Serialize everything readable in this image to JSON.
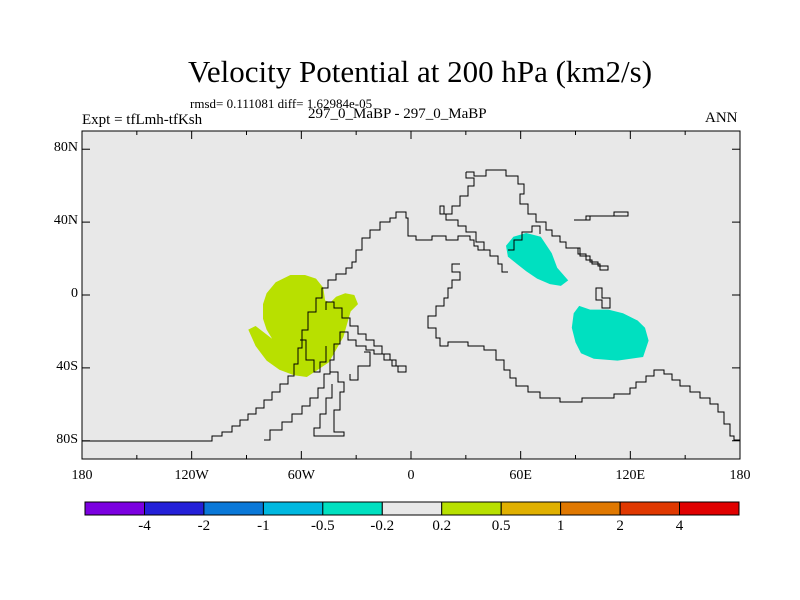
{
  "title": "Velocity Potential at 200 hPa (km2/s)",
  "stats": "rmsd= 0.111081 diff= 1.62984e-05",
  "experiment": "Expt = tfLmh-tfKsh",
  "case_label": "297_0_MaBP - 297_0_MaBP",
  "season": "ANN",
  "chart_data": {
    "type": "heatmap",
    "projection": "cylindrical-equidistant",
    "variable": "Velocity Potential at 200 hPa",
    "units": "km2/s",
    "xlim": [
      -180,
      180
    ],
    "ylim": [
      -90,
      90
    ],
    "lat_ticks": [
      {
        "value": 80,
        "label": "80N"
      },
      {
        "value": 40,
        "label": "40N"
      },
      {
        "value": 0,
        "label": "0"
      },
      {
        "value": -40,
        "label": "40S"
      },
      {
        "value": -80,
        "label": "80S"
      }
    ],
    "lon_ticks": [
      {
        "value": -180,
        "label": "180"
      },
      {
        "value": -120,
        "label": "120W"
      },
      {
        "value": -60,
        "label": "60W"
      },
      {
        "value": 0,
        "label": "0"
      },
      {
        "value": 60,
        "label": "60E"
      },
      {
        "value": 120,
        "label": "120E"
      },
      {
        "value": 180,
        "label": "180"
      }
    ],
    "colorbar": {
      "colors": [
        "#7b00e0",
        "#2420d8",
        "#0a78d8",
        "#00b8e0",
        "#00e0c0",
        "#e8e8e8",
        "#b8e000",
        "#e0b000",
        "#e07800",
        "#e03800",
        "#e00000"
      ],
      "labels": [
        "-4",
        "-2",
        "-1",
        "-0.5",
        "-0.2",
        "0.2",
        "0.5",
        "1",
        "2",
        "4"
      ]
    },
    "regions": [
      {
        "name": "positive anomaly (0.2 to 0.5) over South America",
        "color": "#b8e000",
        "polygon": [
          [
            -66,
            11
          ],
          [
            -74,
            7
          ],
          [
            -79,
            1
          ],
          [
            -81,
            -5
          ],
          [
            -81,
            -13
          ],
          [
            -79,
            -19
          ],
          [
            -76,
            -24
          ],
          [
            -85,
            -17
          ],
          [
            -89,
            -19
          ],
          [
            -85,
            -28
          ],
          [
            -79,
            -36
          ],
          [
            -72,
            -41
          ],
          [
            -64,
            -44
          ],
          [
            -57,
            -45
          ],
          [
            -51,
            -41
          ],
          [
            -45,
            -37
          ],
          [
            -41,
            -30
          ],
          [
            -37,
            -23
          ],
          [
            -35,
            -16
          ],
          [
            -33,
            -9
          ],
          [
            -29,
            -5
          ],
          [
            -31,
            0
          ],
          [
            -36,
            1
          ],
          [
            -41,
            -1
          ],
          [
            -44,
            -4
          ],
          [
            -47,
            -3
          ],
          [
            -48,
            4
          ],
          [
            -52,
            9
          ],
          [
            -58,
            11
          ]
        ]
      },
      {
        "name": "negative anomaly (-0.5 to -0.2) over Arabia / Central Asia",
        "color": "#00e0c0",
        "polygon": [
          [
            56,
            32
          ],
          [
            63,
            34
          ],
          [
            71,
            32
          ],
          [
            77,
            23
          ],
          [
            80,
            15
          ],
          [
            86,
            8
          ],
          [
            82,
            5
          ],
          [
            76,
            6
          ],
          [
            69,
            9
          ],
          [
            63,
            13
          ],
          [
            58,
            17
          ],
          [
            53,
            21
          ],
          [
            52,
            27
          ]
        ]
      },
      {
        "name": "negative anomaly (-0.5 to -0.2) over Indian Ocean",
        "color": "#00e0c0",
        "polygon": [
          [
            92,
            -6
          ],
          [
            98,
            -8
          ],
          [
            108,
            -8
          ],
          [
            116,
            -10
          ],
          [
            124,
            -14
          ],
          [
            128,
            -18
          ],
          [
            130,
            -25
          ],
          [
            127,
            -34
          ],
          [
            113,
            -36
          ],
          [
            100,
            -35
          ],
          [
            93,
            -32
          ],
          [
            90,
            -26
          ],
          [
            88,
            -18
          ],
          [
            89,
            -10
          ]
        ]
      }
    ]
  }
}
